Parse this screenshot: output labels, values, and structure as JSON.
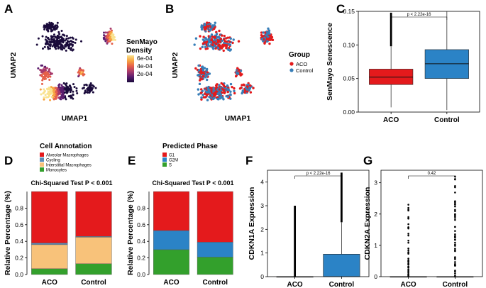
{
  "chart_data": [
    {
      "id": "A",
      "type": "scatter",
      "panel_label": "A",
      "xlabel": "UMAP1",
      "ylabel": "UMAP2",
      "legend": {
        "title_lines": [
          "SenMayo",
          "Density"
        ],
        "ticks": [
          "6e-04",
          "4e-04",
          "2e-04"
        ],
        "colors": [
          "#1a0b3b",
          "#5a1d6e",
          "#a83a6b",
          "#e5604a",
          "#f7a440",
          "#f9e28f"
        ]
      }
    },
    {
      "id": "B",
      "type": "scatter",
      "panel_label": "B",
      "xlabel": "UMAP1",
      "ylabel": "UMAP2",
      "legend": {
        "title": "Group",
        "entries": [
          {
            "label": "ACO",
            "color": "#e41a1c"
          },
          {
            "label": "Control",
            "color": "#377eb8"
          }
        ]
      }
    },
    {
      "id": "C",
      "type": "box",
      "panel_label": "C",
      "ylabel": "SenMayo Senescence",
      "categories": [
        "ACO",
        "Control"
      ],
      "ylim": [
        0,
        0.15
      ],
      "yticks": [
        "0.00",
        "0.05",
        "0.10",
        "0.15"
      ],
      "colors": [
        "#e41a1c",
        "#2b83c6"
      ],
      "boxes": [
        {
          "q1": 0.041,
          "median": 0.052,
          "q3": 0.064,
          "lower": 0.007,
          "upper": 0.098,
          "outlier_max": 0.148
        },
        {
          "q1": 0.05,
          "median": 0.072,
          "q3": 0.093,
          "lower": 0.003,
          "upper": 0.15,
          "outlier_max": 0.15
        }
      ],
      "pvalue": "p < 2.22e-16"
    },
    {
      "id": "D",
      "type": "bar",
      "stacked": true,
      "panel_label": "D",
      "ylabel": "Relative Percentage (%)",
      "subtitle": "Chi-Squared Test P < 0.001",
      "legend_title": "Cell Annotation",
      "categories": [
        "ACO",
        "Control"
      ],
      "ylim": [
        0,
        1
      ],
      "yticks": [
        "0.0",
        "0.2",
        "0.4",
        "0.6",
        "0.8"
      ],
      "series": [
        {
          "name": "Alveolar Macrophages",
          "color": "#e41a1c",
          "values": [
            0.62,
            0.54
          ]
        },
        {
          "name": "Cycling",
          "color": "#5b8db8",
          "values": [
            0.02,
            0.01
          ]
        },
        {
          "name": "Interstitial Macrophages",
          "color": "#f8c27a",
          "values": [
            0.29,
            0.32
          ]
        },
        {
          "name": "Monocytes",
          "color": "#33a02c",
          "values": [
            0.07,
            0.13
          ]
        }
      ]
    },
    {
      "id": "E",
      "type": "bar",
      "stacked": true,
      "panel_label": "E",
      "ylabel": "Relative Percentage (%)",
      "subtitle": "Chi-Squared Test P < 0.001",
      "legend_title": "Predicted Phase",
      "categories": [
        "ACO",
        "Control"
      ],
      "ylim": [
        0,
        1
      ],
      "yticks": [
        "0.0",
        "0.2",
        "0.4",
        "0.6",
        "0.8"
      ],
      "series": [
        {
          "name": "G1",
          "color": "#e41a1c",
          "values": [
            0.47,
            0.61
          ]
        },
        {
          "name": "G2M",
          "color": "#2b83c6",
          "values": [
            0.23,
            0.18
          ]
        },
        {
          "name": "S",
          "color": "#33a02c",
          "values": [
            0.3,
            0.21
          ]
        }
      ]
    },
    {
      "id": "F",
      "type": "box",
      "panel_label": "F",
      "ylabel": "CDKN1A Expression",
      "categories": [
        "ACO",
        "Control"
      ],
      "ylim": [
        0,
        4.5
      ],
      "yticks": [
        "0",
        "1",
        "2",
        "3",
        "4"
      ],
      "colors": [
        "#e41a1c",
        "#2b83c6"
      ],
      "boxes": [
        {
          "q1": 0,
          "median": 0,
          "q3": 0,
          "lower": 0,
          "upper": 0,
          "outlier_max": 3.0
        },
        {
          "q1": 0,
          "median": 0,
          "q3": 0.95,
          "lower": 0,
          "upper": 2.3,
          "outlier_max": 4.4
        }
      ],
      "pvalue": "p < 2.22e-16"
    },
    {
      "id": "G",
      "type": "box",
      "panel_label": "G",
      "ylabel": "CDKN2A Expression",
      "categories": [
        "ACO",
        "Control"
      ],
      "ylim": [
        0,
        3.4
      ],
      "yticks": [
        "0",
        "1",
        "2",
        "3"
      ],
      "colors": [
        "#e41a1c",
        "#2b83c6"
      ],
      "boxes": [
        {
          "q1": 0,
          "median": 0,
          "q3": 0,
          "lower": 0,
          "upper": 0,
          "outlier_max": 2.3
        },
        {
          "q1": 0,
          "median": 0,
          "q3": 0,
          "lower": 0,
          "upper": 0,
          "outlier_max": 3.2
        }
      ],
      "pvalue": "0.42"
    }
  ]
}
